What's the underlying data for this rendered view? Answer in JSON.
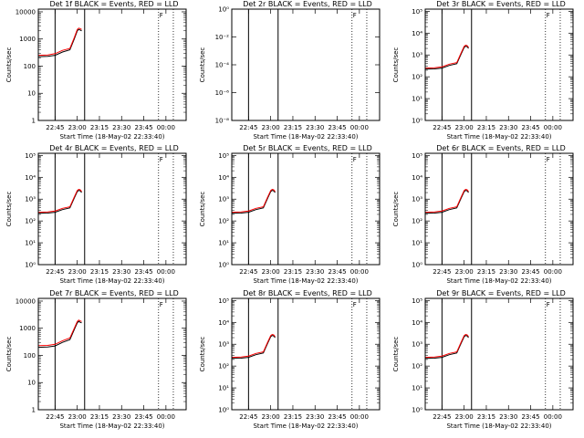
{
  "chart_data": [
    {
      "type": "line",
      "title": "Det 1f BLACK = Events, RED = LLD",
      "xlabel": "Start Time (18-May-02 22:33:40)",
      "ylabel": "Counts/sec",
      "x_tick_labels": [
        "22:45",
        "23:00",
        "23:15",
        "23:30",
        "23:45",
        "00:00"
      ],
      "y_tick_labels": [
        "1",
        "10",
        "100",
        "1000",
        "10000"
      ],
      "ylim_log10": [
        0,
        4.1
      ],
      "vlines_solid": [
        "22:45",
        "23:05"
      ],
      "vlines_dotted": [
        "23:55",
        "00:05"
      ],
      "corner_mark": "F",
      "series": [
        {
          "color": "#000000",
          "x": [
            "22:33:40",
            "22:40",
            "22:45",
            "22:50",
            "22:55",
            "22:58",
            "23:00",
            "23:01",
            "23:02",
            "23:03"
          ],
          "log10_y": [
            2.35,
            2.36,
            2.4,
            2.52,
            2.6,
            3.0,
            3.3,
            3.35,
            3.33,
            3.3
          ]
        },
        {
          "color": "#ff0000",
          "x": [
            "22:33:40",
            "22:40",
            "22:45",
            "22:50",
            "22:55",
            "22:58",
            "23:00",
            "23:01",
            "23:02",
            "23:03"
          ],
          "log10_y": [
            2.4,
            2.41,
            2.46,
            2.58,
            2.65,
            3.05,
            3.35,
            3.4,
            3.38,
            3.35
          ]
        }
      ]
    },
    {
      "type": "line",
      "title": "Det 2r BLACK = Events, RED = LLD",
      "xlabel": "Start Time (18-May-02 22:33:40)",
      "ylabel": "Counts/sec",
      "x_tick_labels": [
        "22:45",
        "23:00",
        "23:15",
        "23:30",
        "23:45",
        "00:00"
      ],
      "y_tick_labels": [
        "10⁰",
        "10⁻²",
        "10⁻⁴",
        "10⁻⁶",
        "10⁻⁸"
      ],
      "ylim_log10": [
        -8,
        0
      ],
      "vlines_solid": [
        "22:45",
        "23:05"
      ],
      "vlines_dotted": [
        "23:55",
        "00:05"
      ],
      "corner_mark": "F",
      "series": []
    },
    {
      "type": "line",
      "title": "Det 3r BLACK = Events, RED = LLD",
      "xlabel": "Start Time (18-May-02 22:33:40)",
      "ylabel": "Counts/sec",
      "x_tick_labels": [
        "22:45",
        "23:00",
        "23:15",
        "23:30",
        "23:45",
        "00:00"
      ],
      "y_tick_labels": [
        "10⁰",
        "10¹",
        "10²",
        "10³",
        "10⁴",
        "10⁵"
      ],
      "ylim_log10": [
        0,
        5.1
      ],
      "vlines_solid": [
        "22:45",
        "23:05"
      ],
      "vlines_dotted": [
        "23:55",
        "00:05"
      ],
      "corner_mark": "F",
      "series": [
        {
          "color": "#000000",
          "x": [
            "22:33:40",
            "22:40",
            "22:45",
            "22:50",
            "22:55",
            "22:58",
            "23:00",
            "23:01",
            "23:02",
            "23:03"
          ],
          "log10_y": [
            2.35,
            2.36,
            2.4,
            2.52,
            2.6,
            3.05,
            3.35,
            3.4,
            3.38,
            3.3
          ]
        },
        {
          "color": "#ff0000",
          "x": [
            "22:33:40",
            "22:40",
            "22:45",
            "22:50",
            "22:55",
            "22:58",
            "23:00",
            "23:01",
            "23:02",
            "23:03"
          ],
          "log10_y": [
            2.4,
            2.41,
            2.46,
            2.58,
            2.65,
            3.1,
            3.4,
            3.45,
            3.43,
            3.35
          ]
        }
      ]
    },
    {
      "type": "line",
      "title": "Det 4r BLACK = Events, RED = LLD",
      "xlabel": "Start Time (18-May-02 22:33:40)",
      "ylabel": "Counts/sec",
      "x_tick_labels": [
        "22:45",
        "23:00",
        "23:15",
        "23:30",
        "23:45",
        "00:00"
      ],
      "y_tick_labels": [
        "10⁰",
        "10¹",
        "10²",
        "10³",
        "10⁴",
        "10⁵"
      ],
      "ylim_log10": [
        0,
        5.1
      ],
      "vlines_solid": [
        "22:45",
        "23:05"
      ],
      "vlines_dotted": [
        "23:55",
        "00:05"
      ],
      "corner_mark": "F",
      "series": [
        {
          "color": "#000000",
          "x": [
            "22:33:40",
            "22:40",
            "22:45",
            "22:50",
            "22:55",
            "22:58",
            "23:00",
            "23:01",
            "23:02",
            "23:03"
          ],
          "log10_y": [
            2.35,
            2.36,
            2.4,
            2.52,
            2.6,
            3.05,
            3.35,
            3.4,
            3.38,
            3.3
          ]
        },
        {
          "color": "#ff0000",
          "x": [
            "22:33:40",
            "22:40",
            "22:45",
            "22:50",
            "22:55",
            "22:58",
            "23:00",
            "23:01",
            "23:02",
            "23:03"
          ],
          "log10_y": [
            2.4,
            2.41,
            2.46,
            2.58,
            2.65,
            3.1,
            3.4,
            3.45,
            3.43,
            3.35
          ]
        }
      ]
    },
    {
      "type": "line",
      "title": "Det 5r BLACK = Events, RED = LLD",
      "xlabel": "Start Time (18-May-02 22:33:40)",
      "ylabel": "Counts/sec",
      "x_tick_labels": [
        "22:45",
        "23:00",
        "23:15",
        "23:30",
        "23:45",
        "00:00"
      ],
      "y_tick_labels": [
        "10⁰",
        "10¹",
        "10²",
        "10³",
        "10⁴",
        "10⁵"
      ],
      "ylim_log10": [
        0,
        5.1
      ],
      "vlines_solid": [
        "22:45",
        "23:05"
      ],
      "vlines_dotted": [
        "23:55",
        "00:05"
      ],
      "corner_mark": "F",
      "series": [
        {
          "color": "#000000",
          "x": [
            "22:33:40",
            "22:40",
            "22:45",
            "22:50",
            "22:55",
            "22:58",
            "23:00",
            "23:01",
            "23:02",
            "23:03"
          ],
          "log10_y": [
            2.35,
            2.36,
            2.4,
            2.52,
            2.6,
            3.05,
            3.35,
            3.4,
            3.38,
            3.3
          ]
        },
        {
          "color": "#ff0000",
          "x": [
            "22:33:40",
            "22:40",
            "22:45",
            "22:50",
            "22:55",
            "22:58",
            "23:00",
            "23:01",
            "23:02",
            "23:03"
          ],
          "log10_y": [
            2.4,
            2.41,
            2.46,
            2.58,
            2.65,
            3.1,
            3.4,
            3.45,
            3.43,
            3.35
          ]
        }
      ]
    },
    {
      "type": "line",
      "title": "Det 6r BLACK = Events, RED = LLD",
      "xlabel": "Start Time (18-May-02 22:33:40)",
      "ylabel": "Counts/sec",
      "x_tick_labels": [
        "22:45",
        "23:00",
        "23:15",
        "23:30",
        "23:45",
        "00:00"
      ],
      "y_tick_labels": [
        "10⁰",
        "10¹",
        "10²",
        "10³",
        "10⁴",
        "10⁵"
      ],
      "ylim_log10": [
        0,
        5.1
      ],
      "vlines_solid": [
        "22:45",
        "23:05"
      ],
      "vlines_dotted": [
        "23:55",
        "00:05"
      ],
      "corner_mark": "F",
      "series": [
        {
          "color": "#000000",
          "x": [
            "22:33:40",
            "22:40",
            "22:45",
            "22:50",
            "22:55",
            "22:58",
            "23:00",
            "23:01",
            "23:02",
            "23:03"
          ],
          "log10_y": [
            2.35,
            2.36,
            2.4,
            2.52,
            2.6,
            3.05,
            3.35,
            3.4,
            3.38,
            3.3
          ]
        },
        {
          "color": "#ff0000",
          "x": [
            "22:33:40",
            "22:40",
            "22:45",
            "22:50",
            "22:55",
            "22:58",
            "23:00",
            "23:01",
            "23:02",
            "23:03"
          ],
          "log10_y": [
            2.4,
            2.41,
            2.46,
            2.58,
            2.65,
            3.1,
            3.4,
            3.45,
            3.43,
            3.35
          ]
        }
      ]
    },
    {
      "type": "line",
      "title": "Det 7r BLACK = Events, RED = LLD",
      "xlabel": "Start Time (18-May-02 22:33:40)",
      "ylabel": "Counts/sec",
      "x_tick_labels": [
        "22:45",
        "23:00",
        "23:15",
        "23:30",
        "23:45",
        "00:00"
      ],
      "y_tick_labels": [
        "1",
        "10",
        "100",
        "1000",
        "10000"
      ],
      "ylim_log10": [
        0,
        4.1
      ],
      "vlines_solid": [
        "22:45",
        "23:05"
      ],
      "vlines_dotted": [
        "23:55",
        "00:05"
      ],
      "corner_mark": "F",
      "series": [
        {
          "color": "#000000",
          "x": [
            "22:33:40",
            "22:40",
            "22:45",
            "22:50",
            "22:55",
            "22:58",
            "23:00",
            "23:01",
            "23:02",
            "23:03"
          ],
          "log10_y": [
            2.3,
            2.31,
            2.35,
            2.48,
            2.58,
            2.95,
            3.2,
            3.25,
            3.22,
            3.2
          ]
        },
        {
          "color": "#ff0000",
          "x": [
            "22:33:40",
            "22:40",
            "22:45",
            "22:50",
            "22:55",
            "22:58",
            "23:00",
            "23:01",
            "23:02",
            "23:03"
          ],
          "log10_y": [
            2.36,
            2.37,
            2.41,
            2.54,
            2.64,
            3.0,
            3.25,
            3.3,
            3.27,
            3.25
          ]
        }
      ]
    },
    {
      "type": "line",
      "title": "Det 8r BLACK = Events, RED = LLD",
      "xlabel": "Start Time (18-May-02 22:33:40)",
      "ylabel": "Counts/sec",
      "x_tick_labels": [
        "22:45",
        "23:00",
        "23:15",
        "23:30",
        "23:45",
        "00:00"
      ],
      "y_tick_labels": [
        "10⁰",
        "10¹",
        "10²",
        "10³",
        "10⁴",
        "10⁵"
      ],
      "ylim_log10": [
        0,
        5.1
      ],
      "vlines_solid": [
        "22:45",
        "23:05"
      ],
      "vlines_dotted": [
        "23:55",
        "00:05"
      ],
      "corner_mark": "F",
      "series": [
        {
          "color": "#000000",
          "x": [
            "22:33:40",
            "22:40",
            "22:45",
            "22:50",
            "22:55",
            "22:58",
            "23:00",
            "23:01",
            "23:02",
            "23:03"
          ],
          "log10_y": [
            2.35,
            2.36,
            2.4,
            2.52,
            2.6,
            3.05,
            3.35,
            3.4,
            3.38,
            3.3
          ]
        },
        {
          "color": "#ff0000",
          "x": [
            "22:33:40",
            "22:40",
            "22:45",
            "22:50",
            "22:55",
            "22:58",
            "23:00",
            "23:01",
            "23:02",
            "23:03"
          ],
          "log10_y": [
            2.4,
            2.41,
            2.46,
            2.58,
            2.65,
            3.1,
            3.4,
            3.45,
            3.43,
            3.35
          ]
        }
      ]
    },
    {
      "type": "line",
      "title": "Det 9r BLACK = Events, RED = LLD",
      "xlabel": "Start Time (18-May-02 22:33:40)",
      "ylabel": "Counts/sec",
      "x_tick_labels": [
        "22:45",
        "23:00",
        "23:15",
        "23:30",
        "23:45",
        "00:00"
      ],
      "y_tick_labels": [
        "10⁰",
        "10¹",
        "10²",
        "10³",
        "10⁴",
        "10⁵"
      ],
      "ylim_log10": [
        0,
        5.1
      ],
      "vlines_solid": [
        "22:45",
        "23:05"
      ],
      "vlines_dotted": [
        "23:55",
        "00:05"
      ],
      "corner_mark": "F",
      "series": [
        {
          "color": "#000000",
          "x": [
            "22:33:40",
            "22:40",
            "22:45",
            "22:50",
            "22:55",
            "22:58",
            "23:00",
            "23:01",
            "23:02",
            "23:03"
          ],
          "log10_y": [
            2.35,
            2.36,
            2.4,
            2.52,
            2.6,
            3.05,
            3.35,
            3.4,
            3.38,
            3.3
          ]
        },
        {
          "color": "#ff0000",
          "x": [
            "22:33:40",
            "22:40",
            "22:45",
            "22:50",
            "22:55",
            "22:58",
            "23:00",
            "23:01",
            "23:02",
            "23:03"
          ],
          "log10_y": [
            2.4,
            2.41,
            2.46,
            2.58,
            2.65,
            3.1,
            3.4,
            3.45,
            3.43,
            3.35
          ]
        }
      ]
    }
  ]
}
